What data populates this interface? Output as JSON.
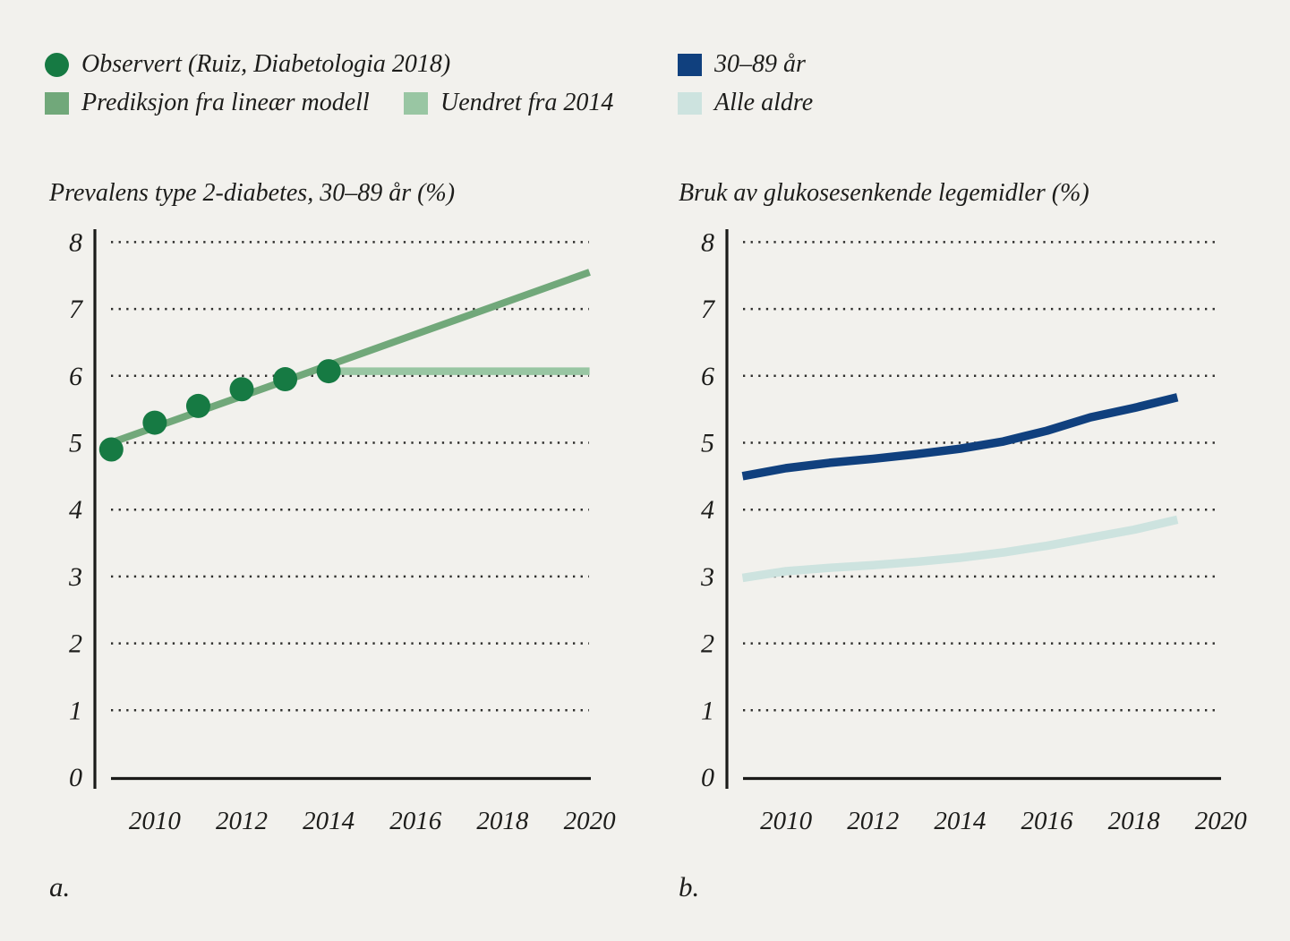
{
  "page": {
    "background": "#f2f1ed",
    "text_color": "#1d1d1b",
    "axis_color": "#1b1b19",
    "grid_color": "#2e2e2c"
  },
  "chart_data": [
    {
      "id": "a",
      "panel_label": "a.",
      "type": "line",
      "title": "Prevalens type 2-diabetes, 30–89 år (%)",
      "ylabel": "",
      "xlabel": "",
      "ylim": [
        0,
        8
      ],
      "xlim": [
        2009,
        2020
      ],
      "yticks": [
        0,
        1,
        2,
        3,
        4,
        5,
        6,
        7,
        8
      ],
      "xticks": [
        2010,
        2012,
        2014,
        2016,
        2018,
        2020
      ],
      "grid": "horizontal dotted",
      "legend_position": "top-left",
      "series": [
        {
          "name": "Uendret fra 2014",
          "style": "line",
          "color": "#99c6a3",
          "width": 8.5,
          "x": [
            2014,
            2020
          ],
          "y": [
            6.07,
            6.07
          ]
        },
        {
          "name": "Prediksjon fra lineær modell",
          "style": "line",
          "color": "#71a87a",
          "width": 8,
          "x": [
            2009,
            2020
          ],
          "y": [
            5.0,
            7.55
          ]
        },
        {
          "name": "Observert (Ruiz, Diabetologia 2018)",
          "style": "scatter",
          "color": "#167a43",
          "radius": 13.5,
          "x": [
            2009,
            2010,
            2011,
            2012,
            2013,
            2014
          ],
          "y": [
            4.9,
            5.3,
            5.55,
            5.8,
            5.95,
            6.07
          ]
        }
      ]
    },
    {
      "id": "b",
      "panel_label": "b.",
      "type": "line",
      "title": "Bruk av glukosesenkende legemidler (%)",
      "ylabel": "",
      "xlabel": "",
      "ylim": [
        0,
        8
      ],
      "xlim": [
        2009,
        2020
      ],
      "yticks": [
        0,
        1,
        2,
        3,
        4,
        5,
        6,
        7,
        8
      ],
      "xticks": [
        2010,
        2012,
        2014,
        2016,
        2018,
        2020
      ],
      "grid": "horizontal dotted",
      "legend_position": "top-left",
      "series": [
        {
          "name": "30–89 år",
          "style": "line",
          "color": "#10407e",
          "width": 9.5,
          "x": [
            2009,
            2010,
            2011,
            2012,
            2013,
            2014,
            2015,
            2016,
            2017,
            2018,
            2019
          ],
          "y": [
            4.5,
            4.62,
            4.7,
            4.76,
            4.83,
            4.91,
            5.02,
            5.18,
            5.38,
            5.52,
            5.68
          ]
        },
        {
          "name": "Alle aldre",
          "style": "line",
          "color": "#cde3df",
          "width": 9.5,
          "x": [
            2009,
            2010,
            2011,
            2012,
            2013,
            2014,
            2015,
            2016,
            2017,
            2018,
            2019
          ],
          "y": [
            2.98,
            3.08,
            3.13,
            3.17,
            3.22,
            3.28,
            3.36,
            3.46,
            3.58,
            3.7,
            3.85
          ]
        }
      ]
    }
  ]
}
